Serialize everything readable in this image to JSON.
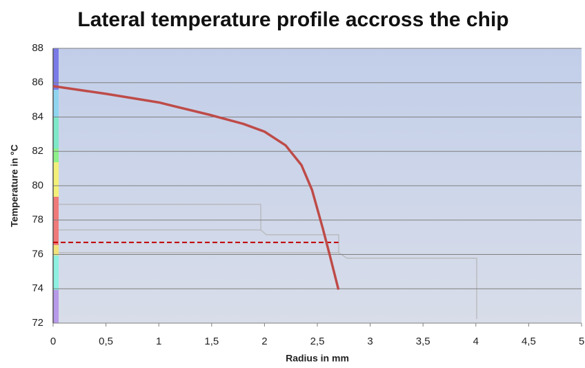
{
  "chart_data": {
    "type": "line",
    "title": "Lateral temperature profile accross the chip",
    "x_label": "Radius in mm",
    "y_label": "Temperature in °C",
    "x": [
      0,
      0.5,
      1,
      1.5,
      1.8,
      2,
      2.2,
      2.35,
      2.45,
      2.55,
      2.62,
      2.7
    ],
    "series": [
      {
        "color": "#be4b48",
        "values": [
          85.8,
          85.35,
          84.85,
          84.1,
          83.6,
          83.15,
          82.35,
          81.2,
          79.75,
          77.55,
          75.9,
          73.95
        ]
      }
    ],
    "hline": {
      "value": 76.7,
      "x": [
        0,
        2.7
      ],
      "color": "#c00000",
      "dashed": true
    },
    "xlim": [
      0,
      5
    ],
    "xticks": [
      0,
      {
        "value": 0.5,
        "label": "0,5"
      },
      1,
      {
        "value": 1.5,
        "label": "1,5"
      },
      2,
      {
        "value": 2.5,
        "label": "2,5"
      },
      3,
      {
        "value": 3.5,
        "label": "3,5"
      },
      4,
      {
        "value": 4.5,
        "label": "4,5"
      },
      5
    ],
    "ylim": [
      72,
      88
    ],
    "yticks": [
      72,
      74,
      76,
      78,
      80,
      82,
      84,
      86,
      88
    ],
    "grid": true
  }
}
